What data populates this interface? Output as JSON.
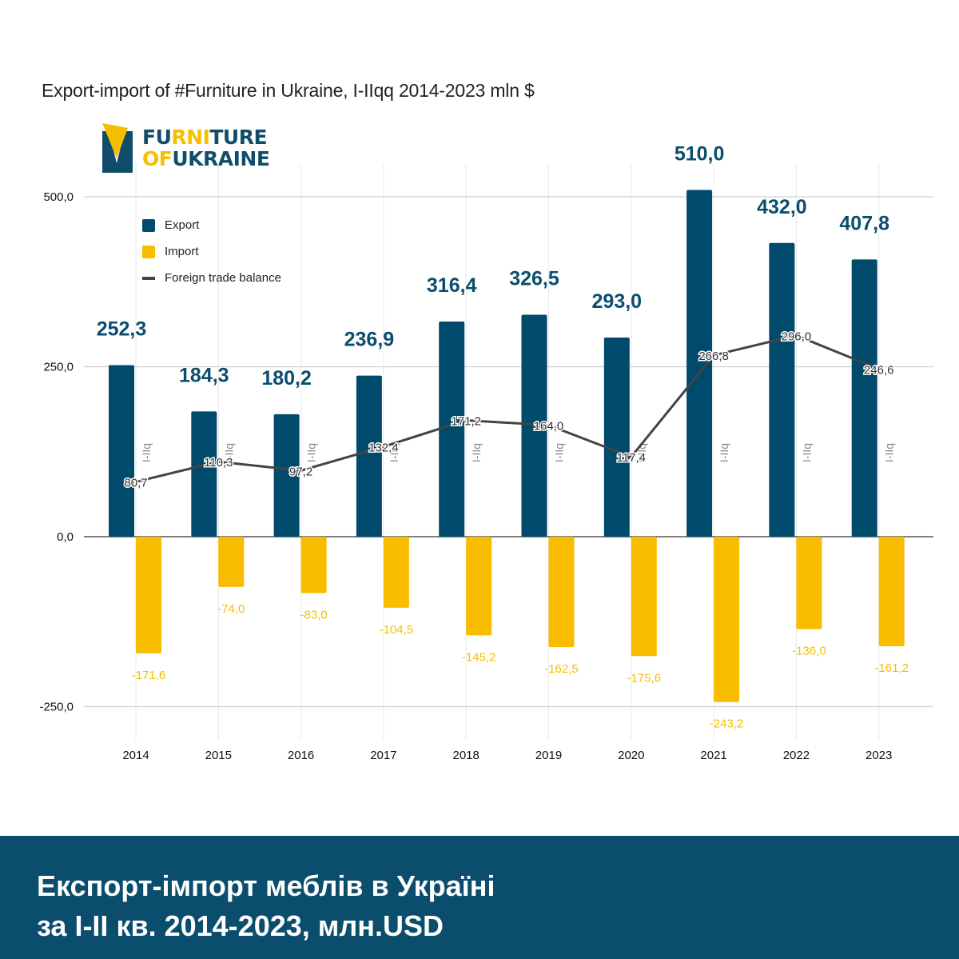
{
  "title": "Export-import of #Furniture in Ukraine, I-IIqq 2014-2023 mln $",
  "logo": {
    "icon": "furniture-of-ukraine-logo-icon",
    "line1_parts": [
      {
        "text": "FU",
        "color": "#0f4d6b"
      },
      {
        "text": "RNI",
        "color": "#f5bf00"
      },
      {
        "text": "TURE",
        "color": "#0f4d6b"
      }
    ],
    "line2_parts": [
      {
        "text": "OF",
        "color": "#f5bf00"
      },
      {
        "text": "UKRAINE",
        "color": "#0f4d6b"
      }
    ]
  },
  "banner": {
    "line1": "Експорт-імпорт меблів в Україні",
    "line2": "за I-II кв. 2014-2023, млн.USD"
  },
  "colors": {
    "export": "#004a6c",
    "import": "#f9bd00",
    "balance": "#444444",
    "export_label": "#0b4d6c",
    "import_label": "#f5bf00",
    "banner_bg": "#0b4d6c"
  },
  "chart_data": {
    "type": "bar",
    "title": "Export-import of #Furniture in Ukraine, I-IIqq 2014-2023 mln $",
    "xlabel": "",
    "ylabel": "",
    "categories": [
      "2014",
      "2015",
      "2016",
      "2017",
      "2018",
      "2019",
      "2020",
      "2021",
      "2022",
      "2023"
    ],
    "period_label": "I-IIq",
    "series": [
      {
        "name": "Export",
        "kind": "bar",
        "values": [
          252.3,
          184.3,
          180.2,
          236.9,
          316.4,
          326.5,
          293.0,
          510.0,
          432.0,
          407.8
        ],
        "labels": [
          "252,3",
          "184,3",
          "180,2",
          "236,9",
          "316,4",
          "326,5",
          "293,0",
          "510,0",
          "432,0",
          "407,8"
        ]
      },
      {
        "name": "Import",
        "kind": "bar",
        "values": [
          -171.6,
          -74.0,
          -83.0,
          -104.5,
          -145.2,
          -162.5,
          -175.6,
          -243.2,
          -136.0,
          -161.2
        ],
        "labels": [
          "-171,6",
          "-74,0",
          "-83,0",
          "-104,5",
          "-145,2",
          "-162,5",
          "-175,6",
          "-243,2",
          "-136,0",
          "-161,2"
        ]
      },
      {
        "name": "Foreign trade balance",
        "kind": "line",
        "values": [
          80.7,
          110.3,
          97.2,
          132.4,
          171.2,
          164.0,
          117.4,
          266.8,
          296.0,
          246.6
        ],
        "labels": [
          "80,7",
          "110,3",
          "97,2",
          "132,4",
          "171,2",
          "164,0",
          "117,4",
          "266,8",
          "296,0",
          "246,6"
        ]
      }
    ],
    "yticks": [
      500,
      250,
      0,
      -250
    ],
    "ytick_labels": [
      "500,0",
      "250,0",
      "0,0",
      "-250,0"
    ],
    "ylim": [
      -250,
      500
    ],
    "grid": true,
    "legend": {
      "position": "top-left",
      "entries": [
        "Export",
        "Import",
        "Foreign trade balance"
      ]
    }
  }
}
